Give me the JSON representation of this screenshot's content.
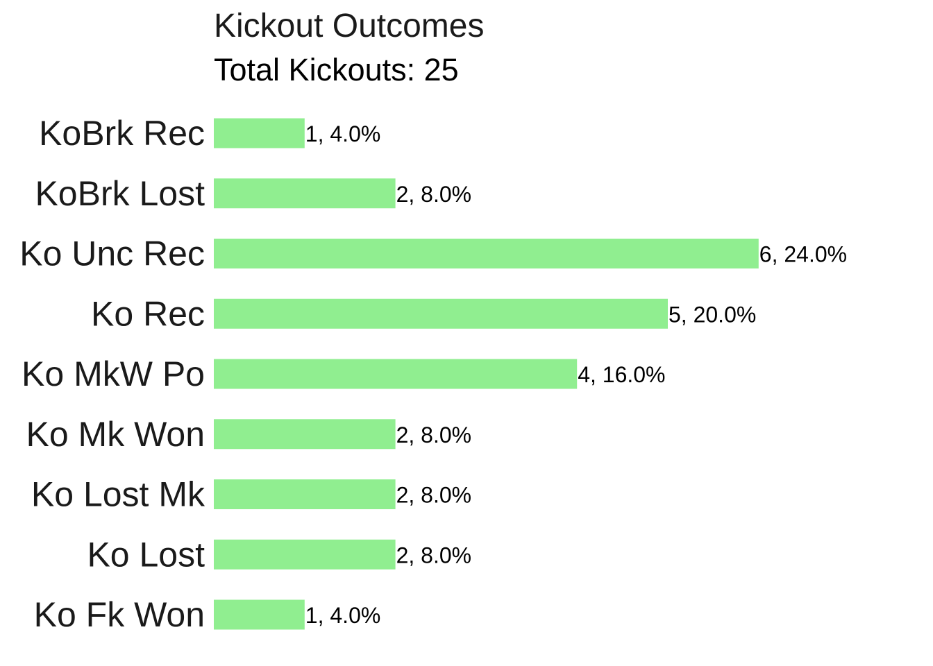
{
  "chart_data": {
    "type": "bar",
    "orientation": "horizontal",
    "title": "Kickout Outcomes",
    "subtitle": "Total Kickouts: 25",
    "categories": [
      "KoBrk Rec",
      "KoBrk Lost",
      "Ko Unc Rec",
      "Ko Rec",
      "Ko MkW Po",
      "Ko Mk Won",
      "Ko Lost Mk",
      "Ko Lost",
      "Ko Fk Won"
    ],
    "values": [
      1,
      2,
      6,
      5,
      4,
      2,
      2,
      2,
      1
    ],
    "data_labels": [
      "1, 4.0%",
      "2, 8.0%",
      "6, 24.0%",
      "5, 20.0%",
      "4, 16.0%",
      "2, 8.0%",
      "2, 8.0%",
      "2, 8.0%",
      "1, 4.0%"
    ],
    "bar_color": "#90EE90",
    "xlim": [
      0,
      8
    ],
    "grid": false,
    "legend": "none",
    "xlabel": "",
    "ylabel": ""
  }
}
